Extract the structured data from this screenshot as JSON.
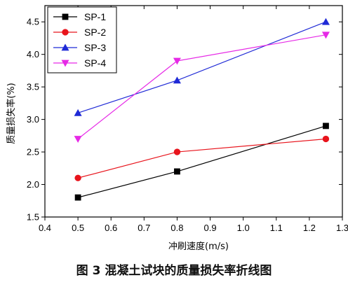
{
  "caption": "图 3   混凝土试块的质量损失率折线图",
  "chart_data": {
    "type": "line",
    "title": "",
    "xlabel": "冲刷速度(m/s)",
    "ylabel": "质量损失率(%)",
    "xlim": [
      0.4,
      1.3
    ],
    "ylim": [
      1.5,
      4.75
    ],
    "xticks": [
      "0.4",
      "0.5",
      "0.6",
      "0.7",
      "0.8",
      "0.9",
      "1.0",
      "1.1",
      "1.2",
      "1.3"
    ],
    "yticks": [
      "1.5",
      "2.0",
      "2.5",
      "3.0",
      "3.5",
      "4.0",
      "4.5"
    ],
    "grid": false,
    "legend_position": "top-left",
    "x": [
      0.5,
      0.8,
      1.25
    ],
    "series": [
      {
        "name": "SP-1",
        "values": [
          1.8,
          2.2,
          2.9
        ],
        "color": "#000000",
        "marker": "square"
      },
      {
        "name": "SP-2",
        "values": [
          2.1,
          2.5,
          2.7
        ],
        "color": "#e8141c",
        "marker": "circle"
      },
      {
        "name": "SP-3",
        "values": [
          3.1,
          3.6,
          4.5
        ],
        "color": "#1f2ad6",
        "marker": "triangle-up"
      },
      {
        "name": "SP-4",
        "values": [
          2.7,
          3.9,
          4.3
        ],
        "color": "#e629e6",
        "marker": "triangle-down"
      }
    ]
  }
}
